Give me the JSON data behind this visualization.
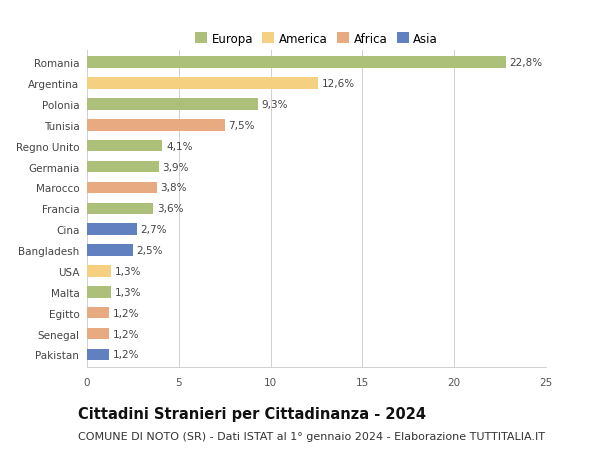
{
  "categories": [
    "Romania",
    "Argentina",
    "Polonia",
    "Tunisia",
    "Regno Unito",
    "Germania",
    "Marocco",
    "Francia",
    "Cina",
    "Bangladesh",
    "USA",
    "Malta",
    "Egitto",
    "Senegal",
    "Pakistan"
  ],
  "values": [
    22.8,
    12.6,
    9.3,
    7.5,
    4.1,
    3.9,
    3.8,
    3.6,
    2.7,
    2.5,
    1.3,
    1.3,
    1.2,
    1.2,
    1.2
  ],
  "labels": [
    "22,8%",
    "12,6%",
    "9,3%",
    "7,5%",
    "4,1%",
    "3,9%",
    "3,8%",
    "3,6%",
    "2,7%",
    "2,5%",
    "1,3%",
    "1,3%",
    "1,2%",
    "1,2%",
    "1,2%"
  ],
  "continents": [
    "Europa",
    "America",
    "Europa",
    "Africa",
    "Europa",
    "Europa",
    "Africa",
    "Europa",
    "Asia",
    "Asia",
    "America",
    "Europa",
    "Africa",
    "Africa",
    "Asia"
  ],
  "continent_colors": {
    "Europa": "#adc07a",
    "America": "#f5d080",
    "Africa": "#e8aa80",
    "Asia": "#6080c0"
  },
  "legend_order": [
    "Europa",
    "America",
    "Africa",
    "Asia"
  ],
  "title": "Cittadini Stranieri per Cittadinanza - 2024",
  "subtitle": "COMUNE DI NOTO (SR) - Dati ISTAT al 1° gennaio 2024 - Elaborazione TUTTITALIA.IT",
  "xlim": [
    0,
    25
  ],
  "xticks": [
    0,
    5,
    10,
    15,
    20,
    25
  ],
  "background_color": "#ffffff",
  "grid_color": "#d0d0d0",
  "title_fontsize": 10.5,
  "subtitle_fontsize": 8,
  "label_fontsize": 7.5,
  "tick_fontsize": 7.5,
  "legend_fontsize": 8.5
}
